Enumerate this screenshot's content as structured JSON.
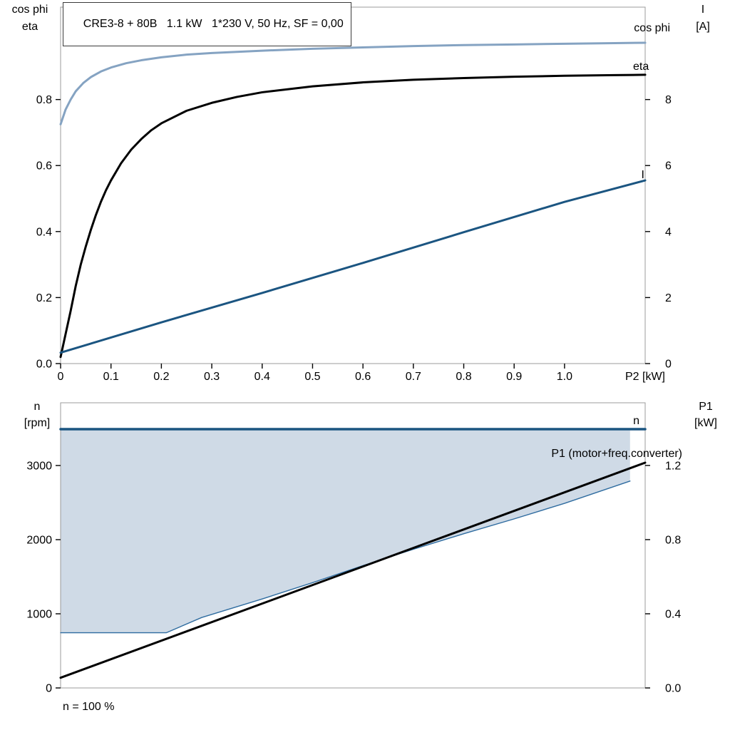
{
  "title_box": "CRE3-8 + 80B   1.1 kW   1*230 V, 50 Hz, SF = 0,00",
  "footer_note": "n = 100 %",
  "colors": {
    "cos_phi": "#85a3c2",
    "eta": "#000000",
    "current": "#1b5581",
    "speed": "#1b5581",
    "speed_range_border": "#2f6ca0",
    "p1": "#000000",
    "area_fill": "#cfdae6",
    "frame": "#9b9b9b"
  },
  "chart_data": [
    {
      "type": "line",
      "title": "CRE3-8 + 80B   1.1 kW   1*230 V, 50 Hz, SF = 0,00",
      "x": {
        "min": 0,
        "max": 1.16,
        "title": "P2 [kW]",
        "ticks": [
          {
            "v": 0,
            "label": "0"
          },
          {
            "v": 0.1,
            "label": "0.1"
          },
          {
            "v": 0.2,
            "label": "0.2"
          },
          {
            "v": 0.3,
            "label": "0.3"
          },
          {
            "v": 0.4,
            "label": "0.4"
          },
          {
            "v": 0.5,
            "label": "0.5"
          },
          {
            "v": 0.6,
            "label": "0.6"
          },
          {
            "v": 0.7,
            "label": "0.7"
          },
          {
            "v": 0.8,
            "label": "0.8"
          },
          {
            "v": 0.9,
            "label": "0.9"
          },
          {
            "v": 1.0,
            "label": "1.0"
          }
        ]
      },
      "y_left": {
        "min": 0,
        "max": 1.08,
        "title_lines": [
          "cos phi",
          "eta"
        ],
        "ticks": [
          {
            "v": 0.0,
            "label": "0.0"
          },
          {
            "v": 0.2,
            "label": "0.2"
          },
          {
            "v": 0.4,
            "label": "0.4"
          },
          {
            "v": 0.6,
            "label": "0.6"
          },
          {
            "v": 0.8,
            "label": "0.8"
          }
        ]
      },
      "y_right": {
        "min": 0,
        "max": 10.8,
        "title_lines": [
          "I",
          "[A]"
        ],
        "ticks": [
          {
            "v": 0,
            "label": "0"
          },
          {
            "v": 2,
            "label": "2"
          },
          {
            "v": 4,
            "label": "4"
          },
          {
            "v": 6,
            "label": "6"
          },
          {
            "v": 8,
            "label": "8"
          }
        ]
      },
      "areas": [],
      "series": [
        {
          "name": "cos phi",
          "axis": "left",
          "color": "#85a3c2",
          "width": 3,
          "label": "cos phi",
          "points": [
            [
              0,
              0.725
            ],
            [
              0.01,
              0.77
            ],
            [
              0.02,
              0.8
            ],
            [
              0.03,
              0.825
            ],
            [
              0.045,
              0.85
            ],
            [
              0.06,
              0.868
            ],
            [
              0.08,
              0.885
            ],
            [
              0.1,
              0.897
            ],
            [
              0.13,
              0.91
            ],
            [
              0.16,
              0.919
            ],
            [
              0.2,
              0.928
            ],
            [
              0.25,
              0.936
            ],
            [
              0.3,
              0.941
            ],
            [
              0.4,
              0.948
            ],
            [
              0.5,
              0.954
            ],
            [
              0.6,
              0.958
            ],
            [
              0.7,
              0.962
            ],
            [
              0.8,
              0.965
            ],
            [
              0.9,
              0.967
            ],
            [
              1.0,
              0.969
            ],
            [
              1.1,
              0.971
            ],
            [
              1.16,
              0.972
            ]
          ]
        },
        {
          "name": "eta",
          "axis": "left",
          "color": "#000000",
          "width": 3,
          "label": "eta",
          "points": [
            [
              0,
              0.02
            ],
            [
              0.01,
              0.09
            ],
            [
              0.02,
              0.16
            ],
            [
              0.03,
              0.235
            ],
            [
              0.04,
              0.3
            ],
            [
              0.05,
              0.355
            ],
            [
              0.06,
              0.405
            ],
            [
              0.07,
              0.45
            ],
            [
              0.08,
              0.49
            ],
            [
              0.09,
              0.525
            ],
            [
              0.1,
              0.555
            ],
            [
              0.12,
              0.607
            ],
            [
              0.14,
              0.648
            ],
            [
              0.16,
              0.68
            ],
            [
              0.18,
              0.707
            ],
            [
              0.2,
              0.728
            ],
            [
              0.25,
              0.766
            ],
            [
              0.3,
              0.79
            ],
            [
              0.35,
              0.808
            ],
            [
              0.4,
              0.822
            ],
            [
              0.5,
              0.84
            ],
            [
              0.6,
              0.852
            ],
            [
              0.7,
              0.86
            ],
            [
              0.8,
              0.865
            ],
            [
              0.9,
              0.869
            ],
            [
              1.0,
              0.872
            ],
            [
              1.1,
              0.874
            ],
            [
              1.16,
              0.875
            ]
          ]
        },
        {
          "name": "I",
          "axis": "right",
          "color": "#1b5581",
          "width": 3,
          "label": "I",
          "points": [
            [
              0,
              0.33
            ],
            [
              0.2,
              1.25
            ],
            [
              0.4,
              2.14
            ],
            [
              0.6,
              3.05
            ],
            [
              0.8,
              3.98
            ],
            [
              1.0,
              4.9
            ],
            [
              1.16,
              5.55
            ]
          ]
        }
      ]
    },
    {
      "type": "line",
      "title": "",
      "x": {
        "min": 0,
        "max": 1.16,
        "title": "",
        "ticks": []
      },
      "y_left": {
        "min": 0,
        "max": 3846,
        "title_lines": [
          "n",
          "[rpm]"
        ],
        "ticks": [
          {
            "v": 0,
            "label": "0"
          },
          {
            "v": 1000,
            "label": "1000"
          },
          {
            "v": 2000,
            "label": "2000"
          },
          {
            "v": 3000,
            "label": "3000"
          }
        ]
      },
      "y_right": {
        "min": 0,
        "max": 1.538,
        "title_lines": [
          "P1",
          "[kW]"
        ],
        "ticks": [
          {
            "v": 0.0,
            "label": "0.0"
          },
          {
            "v": 0.4,
            "label": "0.4"
          },
          {
            "v": 0.8,
            "label": "0.8"
          },
          {
            "v": 1.2,
            "label": "1.2"
          }
        ]
      },
      "areas": [
        {
          "axis": "left",
          "fill": "#cfdae6",
          "lower": [
            [
              0,
              745
            ],
            [
              0.21,
              745
            ],
            [
              0.28,
              950
            ],
            [
              0.4,
              1200
            ],
            [
              0.5,
              1420
            ],
            [
              0.6,
              1650
            ],
            [
              0.7,
              1870
            ],
            [
              0.8,
              2080
            ],
            [
              0.9,
              2280
            ],
            [
              1.0,
              2490
            ],
            [
              1.13,
              2790
            ]
          ],
          "upper": [
            [
              0,
              3490
            ],
            [
              1.13,
              3490
            ]
          ]
        }
      ],
      "series": [
        {
          "name": "speed range lower limit",
          "axis": "left",
          "color": "#2f6ca0",
          "width": 1.4,
          "label": "",
          "points": [
            [
              0,
              745
            ],
            [
              0.21,
              745
            ],
            [
              0.28,
              950
            ],
            [
              0.4,
              1200
            ],
            [
              0.5,
              1420
            ],
            [
              0.6,
              1650
            ],
            [
              0.7,
              1870
            ],
            [
              0.8,
              2080
            ],
            [
              0.9,
              2280
            ],
            [
              1.0,
              2490
            ],
            [
              1.13,
              2790
            ]
          ]
        },
        {
          "name": "P1",
          "axis": "right",
          "color": "#000000",
          "width": 3,
          "label": "P1 (motor+freq.converter)",
          "points": [
            [
              0,
              0.055
            ],
            [
              1.16,
              1.215
            ]
          ]
        },
        {
          "name": "n",
          "axis": "left",
          "color": "#1b5581",
          "width": 3.5,
          "label": "n",
          "points": [
            [
              0,
              3490
            ],
            [
              1.16,
              3490
            ]
          ]
        }
      ]
    }
  ]
}
